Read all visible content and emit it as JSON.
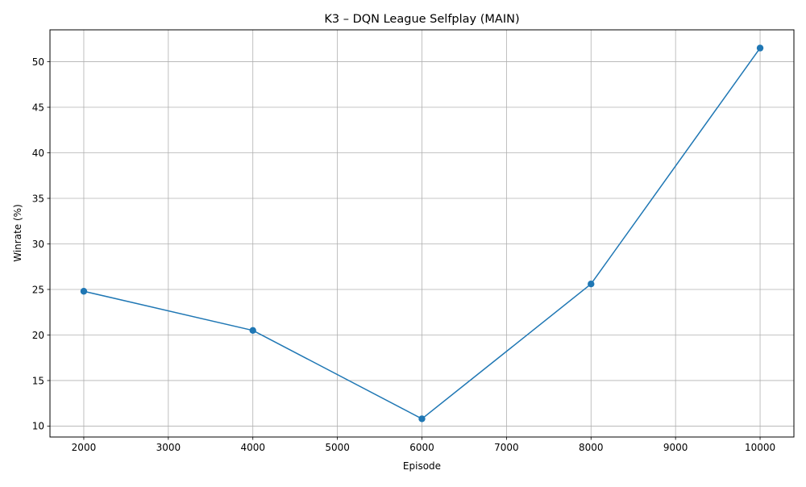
{
  "chart_data": {
    "type": "line",
    "title": "K3 – DQN League Selfplay (MAIN)",
    "xlabel": "Episode",
    "ylabel": "Winrate (%)",
    "x": [
      2000,
      4000,
      6000,
      8000,
      10000
    ],
    "series": [
      {
        "values": [
          24.8,
          20.5,
          10.8,
          25.6,
          51.5
        ],
        "color": "#1f77b4",
        "marker": "circle"
      }
    ],
    "xlim": [
      1600,
      10400
    ],
    "ylim": [
      8.8,
      53.5
    ],
    "xticks": [
      2000,
      3000,
      4000,
      5000,
      6000,
      7000,
      8000,
      9000,
      10000
    ],
    "yticks": [
      10,
      15,
      20,
      25,
      30,
      35,
      40,
      45,
      50
    ],
    "grid": true,
    "grid_color": "#b0b0b0",
    "legend": "none"
  }
}
